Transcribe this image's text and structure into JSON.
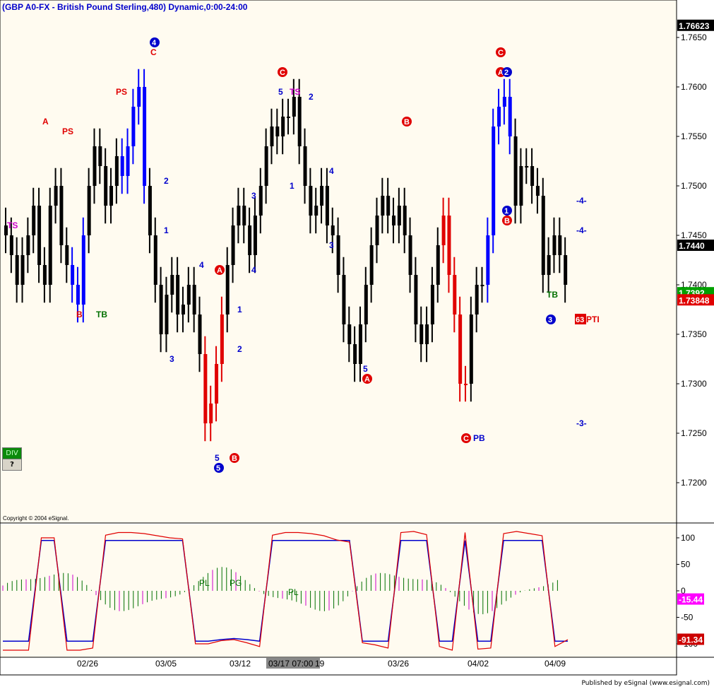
{
  "title": "(GBP A0-FX - British Pound Sterling,480) Dynamic,0:00-24:00",
  "copyright": "Copyright © 2004 eSignal.",
  "footer": "Published by eSignal (www.esignal.com)",
  "buttons": {
    "div": "DIV",
    "help": "?"
  },
  "crosshair_time": "03/17 07:00",
  "colors": {
    "background": "#fffbf0",
    "up": "#0000ff",
    "down": "#e00000",
    "neutral": "#000000",
    "green": "#007000",
    "magenta": "#cc00cc"
  },
  "chart_data": [
    {
      "type": "candlestick",
      "title": "(GBP A0-FX - British Pound Sterling,480) Dynamic,0:00-24:00",
      "ylim": [
        1.7175,
        1.7675
      ],
      "y_ticks": [
        1.765,
        1.76,
        1.755,
        1.75,
        1.745,
        1.744,
        1.74,
        1.735,
        1.73,
        1.725,
        1.72
      ],
      "y_tick_labels": [
        "1.7650",
        "1.7600",
        "1.7550",
        "1.7500",
        "1.7450",
        "1.7440",
        "1.7400",
        "1.7350",
        "1.7300",
        "1.7250",
        "1.7200"
      ],
      "x_labels": [
        "02/26",
        "03/05",
        "03/12",
        "03/17 07:00",
        "19",
        "03/26",
        "04/02",
        "04/09"
      ],
      "price_flags": [
        {
          "label": "1.76623",
          "value": 1.76623,
          "color": "#000000"
        },
        {
          "label": "1.7440",
          "value": 1.744,
          "color": "#000000"
        },
        {
          "label": "1.7392",
          "value": 1.7392,
          "color": "#00a000"
        },
        {
          "label": "1.73848",
          "value": 1.73848,
          "color": "#e00000"
        }
      ],
      "series": [
        {
          "name": "price",
          "approx_closes": [
            1.745,
            1.743,
            1.74,
            1.743,
            1.745,
            1.748,
            1.742,
            1.74,
            1.748,
            1.75,
            1.744,
            1.742,
            1.74,
            1.738,
            1.745,
            1.75,
            1.754,
            1.752,
            1.748,
            1.75,
            1.753,
            1.751,
            1.754,
            1.758,
            1.76,
            1.75,
            1.745,
            1.74,
            1.735,
            1.739,
            1.741,
            1.737,
            1.738,
            1.74,
            1.737,
            1.733,
            1.726,
            1.728,
            1.732,
            1.737,
            1.742,
            1.746,
            1.748,
            1.746,
            1.743,
            1.747,
            1.75,
            1.754,
            1.756,
            1.755,
            1.757,
            1.757,
            1.759,
            1.754,
            1.75,
            1.747,
            1.748,
            1.75,
            1.746,
            1.745,
            1.741,
            1.736,
            1.734,
            1.732,
            1.736,
            1.74,
            1.744,
            1.747,
            1.749,
            1.747,
            1.746,
            1.748,
            1.745,
            1.741,
            1.736,
            1.734,
            1.736,
            1.74,
            1.744,
            1.747,
            1.741,
            1.737,
            1.73,
            1.73,
            1.737,
            1.74,
            1.74,
            1.745,
            1.756,
            1.758,
            1.759,
            1.755,
            1.748,
            1.752,
            1.752,
            1.75,
            1.749,
            1.741,
            1.743,
            1.745,
            1.743,
            1.74
          ]
        }
      ],
      "annotations": [
        {
          "text": "TS",
          "date": "02/19",
          "price": 1.746,
          "color": "#cc00cc"
        },
        {
          "text": "A",
          "date": "02/23",
          "price": 1.7565,
          "color": "#e00000"
        },
        {
          "text": "PS",
          "date": "02/24",
          "price": 1.7555,
          "color": "#e00000"
        },
        {
          "text": "B",
          "date": "02/25",
          "price": 1.737,
          "color": "#e00000"
        },
        {
          "text": "TB",
          "date": "02/26",
          "price": 1.737,
          "color": "#007000"
        },
        {
          "text": "PS",
          "date": "02/28",
          "price": 1.7595,
          "color": "#e00000"
        },
        {
          "text": "4",
          "date": "03/02",
          "price": 1.7645,
          "color": "#0000cc",
          "shape": "circle"
        },
        {
          "text": "C",
          "date": "03/02",
          "price": 1.7635,
          "color": "#e00000"
        },
        {
          "text": "2",
          "date": "03/03",
          "price": 1.7505,
          "color": "#0000cc"
        },
        {
          "text": "1",
          "date": "03/03",
          "price": 1.7455,
          "color": "#0000cc"
        },
        {
          "text": "3",
          "date": "03/04",
          "price": 1.7325,
          "color": "#0000cc"
        },
        {
          "text": "4",
          "date": "03/05",
          "price": 1.742,
          "color": "#0000cc"
        },
        {
          "text": "A",
          "date": "03/06",
          "price": 1.7415,
          "color": "#e00000",
          "shape": "circle"
        },
        {
          "text": "5",
          "date": "03/08",
          "price": 1.7225,
          "color": "#0000cc"
        },
        {
          "text": "5",
          "date": "03/08",
          "price": 1.7215,
          "color": "#0000cc",
          "shape": "circle"
        },
        {
          "text": "B",
          "date": "03/09",
          "price": 1.7225,
          "color": "#e00000",
          "shape": "circle"
        },
        {
          "text": "1",
          "date": "03/10",
          "price": 1.7375,
          "color": "#0000cc"
        },
        {
          "text": "2",
          "date": "03/10",
          "price": 1.7335,
          "color": "#0000cc"
        },
        {
          "text": "3",
          "date": "03/11",
          "price": 1.749,
          "color": "#0000cc"
        },
        {
          "text": "4",
          "date": "03/11",
          "price": 1.7415,
          "color": "#0000cc"
        },
        {
          "text": "C",
          "date": "03/13",
          "price": 1.7615,
          "color": "#e00000",
          "shape": "circle"
        },
        {
          "text": "5",
          "date": "03/13",
          "price": 1.7595,
          "color": "#0000cc"
        },
        {
          "text": "TS",
          "date": "03/14",
          "price": 1.7595,
          "color": "#cc00cc"
        },
        {
          "text": "2",
          "date": "03/16",
          "price": 1.759,
          "color": "#0000cc"
        },
        {
          "text": "1",
          "date": "03/14",
          "price": 1.75,
          "color": "#0000cc"
        },
        {
          "text": "4",
          "date": "03/18",
          "price": 1.7515,
          "color": "#0000cc"
        },
        {
          "text": "3",
          "date": "03/18",
          "price": 1.744,
          "color": "#0000cc"
        },
        {
          "text": "5",
          "date": "03/22",
          "price": 1.7315,
          "color": "#0000cc"
        },
        {
          "text": "A",
          "date": "03/22",
          "price": 1.7305,
          "color": "#e00000",
          "shape": "circle"
        },
        {
          "text": "B",
          "date": "03/23",
          "price": 1.7565,
          "color": "#e00000",
          "shape": "circle"
        },
        {
          "text": "C",
          "date": "03/30",
          "price": 1.7245,
          "color": "#e00000",
          "shape": "circle"
        },
        {
          "text": "PB",
          "date": "03/31",
          "price": 1.7245,
          "color": "#0000cc"
        },
        {
          "text": "C",
          "date": "04/02",
          "price": 1.7635,
          "color": "#e00000",
          "shape": "circle"
        },
        {
          "text": "A",
          "date": "04/02",
          "price": 1.7615,
          "color": "#e00000",
          "shape": "circle"
        },
        {
          "text": "2",
          "date": "04/03",
          "price": 1.7615,
          "color": "#0000cc",
          "shape": "circle"
        },
        {
          "text": "1",
          "date": "04/03",
          "price": 1.7475,
          "color": "#0000cc",
          "shape": "circle"
        },
        {
          "text": "B",
          "date": "04/03",
          "price": 1.7465,
          "color": "#e00000",
          "shape": "circle"
        },
        {
          "text": "TB",
          "date": "04/08",
          "price": 1.739,
          "color": "#007000"
        },
        {
          "text": "3",
          "date": "04/08",
          "price": 1.7365,
          "color": "#0000cc",
          "shape": "circle"
        },
        {
          "text": "63",
          "date": "04/09",
          "price": 1.7365,
          "color": "#ffffff",
          "shape": "box"
        },
        {
          "text": "PTI",
          "date": "04/09",
          "price": 1.7365,
          "color": "#e00000"
        },
        {
          "text": "-4-",
          "date": "04/09",
          "price": 1.7485,
          "color": "#0000cc"
        },
        {
          "text": "-4-",
          "date": "04/09",
          "price": 1.7455,
          "color": "#0000cc"
        },
        {
          "text": "-3-",
          "date": "04/09",
          "price": 1.726,
          "color": "#0000cc"
        }
      ]
    },
    {
      "type": "line",
      "title": "",
      "ylim": [
        -112,
        112
      ],
      "y_ticks": [
        100,
        50,
        0,
        -50,
        -100
      ],
      "y_tick_labels": [
        "100",
        "50",
        "0",
        "-50",
        "-100"
      ],
      "value_flags": [
        {
          "label": "-15.44",
          "value": -15.44,
          "color": "#ff00ff"
        },
        {
          "label": "-91.34",
          "value": -91.34,
          "color": "#cc0000"
        }
      ],
      "annotations": [
        "PL",
        "PG",
        "PL"
      ],
      "series": [
        {
          "name": "",
          "color": "#0000cc",
          "values": [
            -95,
            -95,
            -95,
            95,
            95,
            -95,
            -95,
            -95,
            95,
            95,
            95,
            95,
            95,
            95,
            95,
            -95,
            -95,
            -92,
            -90,
            -92,
            -95,
            95,
            95,
            95,
            95,
            95,
            95,
            95,
            -95,
            -95,
            -95,
            95,
            95,
            95,
            -95,
            -95,
            95,
            -95,
            -95,
            95,
            95,
            95,
            95,
            -95,
            -95
          ]
        },
        {
          "name": "",
          "color": "#e00000",
          "values": [
            -112,
            -112,
            -112,
            100,
            100,
            -112,
            -112,
            -108,
            105,
            110,
            110,
            108,
            104,
            100,
            98,
            -100,
            -100,
            -94,
            -92,
            -98,
            -105,
            105,
            110,
            110,
            108,
            104,
            96,
            92,
            -98,
            -102,
            -108,
            110,
            112,
            106,
            -105,
            -112,
            110,
            -110,
            -108,
            108,
            112,
            108,
            104,
            -105,
            -92
          ]
        }
      ]
    }
  ]
}
